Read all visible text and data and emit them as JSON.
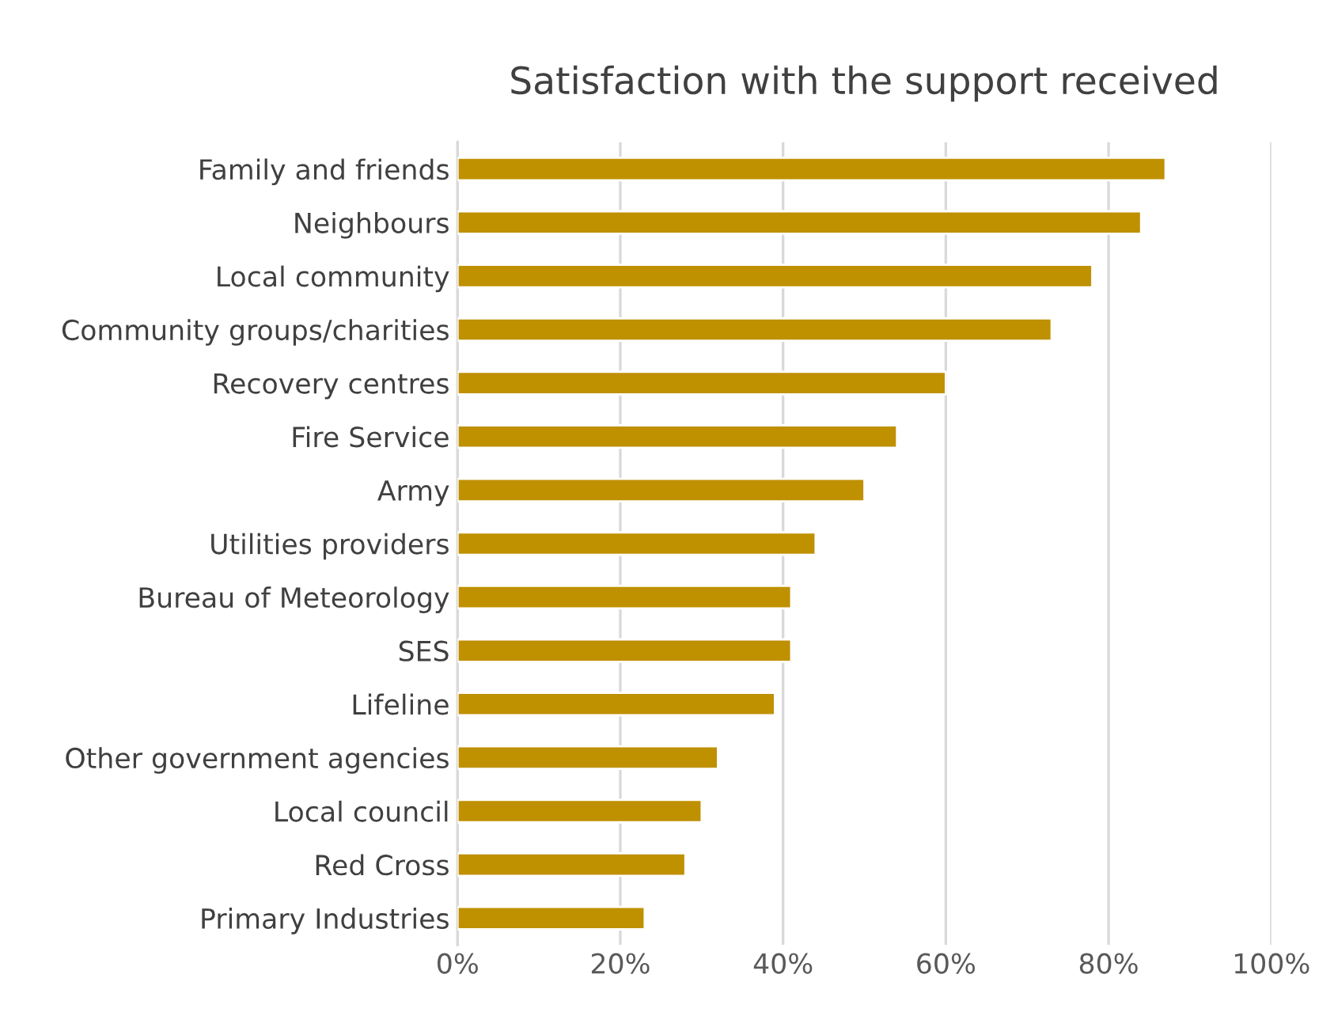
{
  "chart_data": {
    "type": "bar",
    "orientation": "horizontal",
    "title": "Satisfaction with the support received",
    "categories": [
      "Family and friends",
      "Neighbours",
      "Local community",
      "Community groups/charities",
      "Recovery centres",
      "Fire Service",
      "Army",
      "Utilities providers",
      "Bureau of Meteorology",
      "SES",
      "Lifeline",
      "Other government agencies",
      "Local council",
      "Red Cross",
      "Primary Industries"
    ],
    "values": [
      87,
      84,
      78,
      73,
      60,
      54,
      50,
      44,
      41,
      41,
      39,
      32,
      30,
      28,
      23
    ],
    "color": "#bf9000",
    "xlim": [
      0,
      100
    ],
    "xticks": [
      {
        "value": 0,
        "label": "0%"
      },
      {
        "value": 20,
        "label": "20%"
      },
      {
        "value": 40,
        "label": "40%"
      },
      {
        "value": 60,
        "label": "60%"
      },
      {
        "value": 80,
        "label": "80%"
      },
      {
        "value": 100,
        "label": "100%"
      }
    ],
    "grid": "x"
  }
}
